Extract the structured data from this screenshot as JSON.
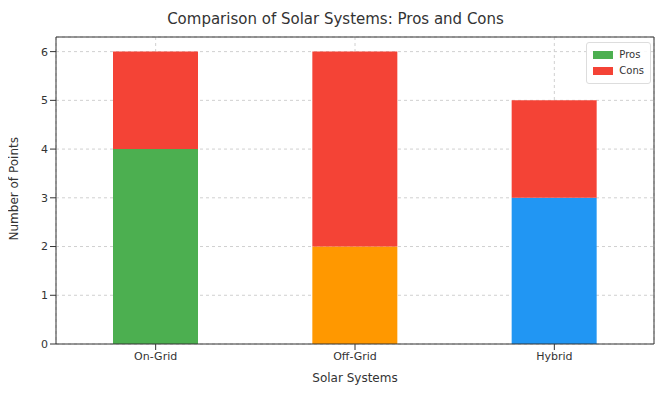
{
  "chart_data": {
    "type": "bar",
    "title": "Comparison of Solar Systems: Pros and Cons",
    "x_label": "Solar Systems",
    "y_label": "Number of Points",
    "categories": [
      "On-Grid",
      "Off-Grid",
      "Hybrid"
    ],
    "series": [
      {
        "name": "Pros",
        "color": "#4caf50",
        "colors": [
          "#4caf50",
          "#ff9800",
          "#2196f3"
        ],
        "values": [
          4,
          2,
          3
        ]
      },
      {
        "name": "Cons",
        "color": "#f44336",
        "values": [
          2,
          4,
          2
        ]
      }
    ],
    "stacked": true,
    "ylim": [
      0,
      6.3
    ],
    "yticks": [
      0,
      1,
      2,
      3,
      4,
      5,
      6
    ],
    "grid": true,
    "legend": "upper right"
  }
}
